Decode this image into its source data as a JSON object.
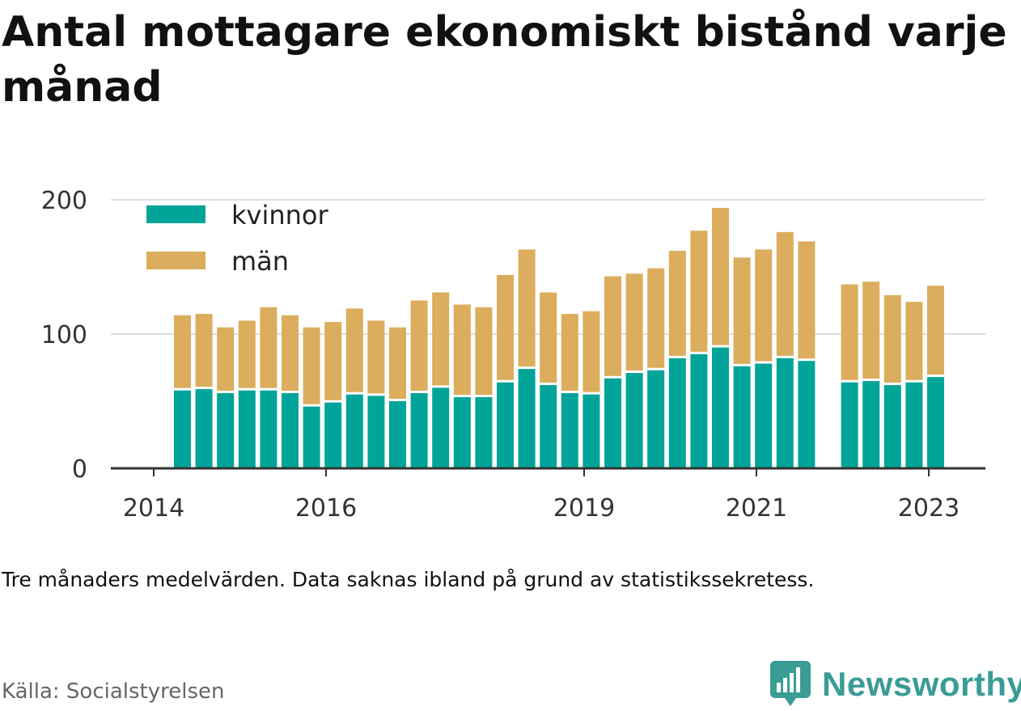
{
  "title": "Antal mottagare ekonomiskt bistånd varje månad",
  "note": "Tre månaders medelvärden. Data saknas ibland på grund av statistikssekretess.",
  "source": "Källa: Socialstyrelsen",
  "brand": {
    "name": "Newsworthy",
    "icon": "bar-chart-speech-bubble-icon",
    "color": "#3a9c95"
  },
  "colors": {
    "kvinnor": "#00a499",
    "man": "#dbad5c",
    "grid": "#dddddd",
    "axis": "#333333"
  },
  "chart_data": {
    "type": "bar",
    "stacked": true,
    "ylim": [
      0,
      200
    ],
    "yticks": [
      0,
      100,
      200
    ],
    "grid": true,
    "legend_position": "top-left",
    "xtick_labels": [
      "2014",
      "2016",
      "2019",
      "2021",
      "2023"
    ],
    "series": [
      {
        "name": "kvinnor",
        "values": [
          58,
          59,
          56,
          58,
          58,
          56,
          46,
          49,
          55,
          54,
          50,
          56,
          60,
          53,
          53,
          64,
          74,
          62,
          56,
          55,
          67,
          71,
          73,
          82,
          85,
          90,
          76,
          78,
          82,
          80,
          null,
          64,
          65,
          62,
          64,
          68
        ]
      },
      {
        "name": "män",
        "values": [
          56,
          56,
          49,
          52,
          62,
          58,
          59,
          60,
          64,
          56,
          55,
          69,
          71,
          69,
          67,
          80,
          89,
          69,
          59,
          62,
          76,
          74,
          76,
          80,
          92,
          104,
          81,
          85,
          94,
          89,
          null,
          73,
          74,
          67,
          60,
          68
        ]
      }
    ]
  }
}
